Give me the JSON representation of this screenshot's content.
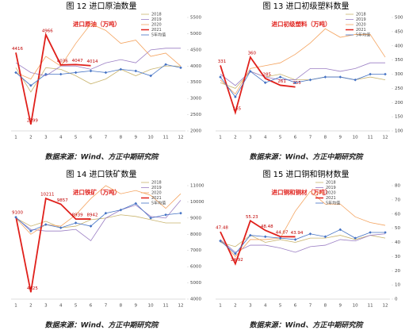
{
  "chart_data": [
    {
      "type": "line",
      "caption": "图 12  进口原油数量",
      "title": "进口原油（万吨）",
      "source": "数据来源：Wind、方正中期研究院",
      "categories": [
        "1",
        "2",
        "3",
        "4",
        "5",
        "6",
        "7",
        "8",
        "9",
        "10",
        "11",
        "12"
      ],
      "ylim": [
        2000,
        5500
      ],
      "yticks": [
        2000,
        2500,
        3000,
        3500,
        4000,
        4500,
        5000,
        5500
      ],
      "grid": false,
      "legend": "upper right",
      "series": [
        {
          "name": "2018",
          "color": "#c9b46e",
          "values": [
            3950,
            3200,
            3950,
            3900,
            3700,
            3450,
            3600,
            3900,
            3700,
            3900,
            4000,
            4000
          ]
        },
        {
          "name": "2019",
          "color": "#9b7fc4",
          "values": [
            4100,
            3800,
            3700,
            4000,
            4000,
            3900,
            4100,
            4200,
            4100,
            4500,
            4550,
            4550
          ]
        },
        {
          "name": "2020",
          "color": "#f4a460",
          "values": [
            3800,
            3600,
            4300,
            4000,
            4700,
            5300,
            5100,
            4700,
            4800,
            4300,
            4400,
            4000
          ]
        },
        {
          "name": "2021",
          "color": "#e0201b",
          "values": [
            4416,
            2199,
            4966,
            4036,
            4047,
            4014,
            null,
            null,
            null,
            null,
            null,
            null
          ],
          "value_labels": [
            "4416",
            "2199",
            "4966",
            "4036",
            "4047",
            "4014",
            null,
            null,
            null,
            null,
            null,
            null
          ]
        },
        {
          "name": "5年均值",
          "color": "#4472c4",
          "values": [
            3800,
            3400,
            3750,
            3750,
            3800,
            3850,
            3800,
            3900,
            3850,
            3700,
            4050,
            3950
          ]
        }
      ]
    },
    {
      "type": "line",
      "caption": "图 13  进口初级塑料数量",
      "title": "进口初级塑料（万吨）",
      "source": "数据来源：Wind、方正中期研究院",
      "categories": [
        "1",
        "2",
        "3",
        "4",
        "5",
        "6",
        "7",
        "8",
        "9",
        "10",
        "11",
        "12"
      ],
      "ylim": [
        100,
        500
      ],
      "yticks": [
        100,
        150,
        200,
        250,
        300,
        350,
        400,
        450,
        500
      ],
      "grid": false,
      "legend": "upper right",
      "series": [
        {
          "name": "2018",
          "color": "#c9b46e",
          "values": [
            270,
            250,
            310,
            290,
            300,
            280,
            280,
            290,
            290,
            280,
            290,
            280
          ]
        },
        {
          "name": "2019",
          "color": "#9b7fc4",
          "values": [
            300,
            260,
            310,
            290,
            280,
            280,
            320,
            320,
            310,
            320,
            340,
            340
          ]
        },
        {
          "name": "2020",
          "color": "#f4a460",
          "values": [
            280,
            230,
            320,
            330,
            340,
            370,
            410,
            460,
            430,
            440,
            440,
            360
          ]
        },
        {
          "name": "2021",
          "color": "#e0201b",
          "values": [
            331,
            165,
            360,
            285,
            261,
            255,
            null,
            null,
            null,
            null,
            null,
            null
          ],
          "value_labels": [
            "331",
            "165",
            "360",
            "285",
            "261",
            "255",
            null,
            null,
            null,
            null,
            null,
            null
          ]
        },
        {
          "name": "5年均值",
          "color": "#4472c4",
          "values": [
            290,
            220,
            310,
            270,
            290,
            270,
            280,
            290,
            290,
            280,
            300,
            300
          ]
        }
      ]
    },
    {
      "type": "line",
      "caption": "图 14  进口铁矿数量",
      "title": "进口铁矿（万吨）",
      "source": "数据来源：Wind、方正中期研究院",
      "categories": [
        "1",
        "2",
        "3",
        "4",
        "5",
        "6",
        "7",
        "8",
        "9",
        "10",
        "11",
        "12"
      ],
      "ylim": [
        4000,
        11000
      ],
      "yticks": [
        4000,
        5000,
        6000,
        7000,
        8000,
        9000,
        10000,
        11000
      ],
      "grid": false,
      "legend": "upper right",
      "series": [
        {
          "name": "2018",
          "color": "#c9b46e",
          "values": [
            9000,
            8500,
            8800,
            8400,
            8500,
            8900,
            9000,
            9200,
            9100,
            8900,
            8700,
            8700
          ]
        },
        {
          "name": "2019",
          "color": "#9b7fc4",
          "values": [
            9000,
            8300,
            8200,
            8200,
            8300,
            7600,
            9000,
            9500,
            9800,
            9100,
            9000,
            10100
          ]
        },
        {
          "name": "2020",
          "color": "#f4a460",
          "values": [
            9000,
            8000,
            8600,
            8500,
            9200,
            10200,
            11000,
            10500,
            10700,
            10400,
            9600,
            10500
          ]
        },
        {
          "name": "2021",
          "color": "#e0201b",
          "values": [
            9100,
            4425,
            10211,
            9857,
            8939,
            8942,
            null,
            null,
            null,
            null,
            null,
            null
          ],
          "value_labels": [
            "9100",
            "4425",
            "10211",
            "9857",
            "8939",
            "8942",
            null,
            null,
            null,
            null,
            null,
            null
          ]
        },
        {
          "name": "5年均值",
          "color": "#4472c4",
          "values": [
            9050,
            8200,
            8600,
            8400,
            8700,
            8500,
            9300,
            9500,
            9900,
            9000,
            9200,
            9300
          ]
        }
      ]
    },
    {
      "type": "line",
      "caption": "图 15  进口铜和铜材数量",
      "title": "进口铜和铜材（万吨）",
      "source": "数据来源：Wind、方正中期研究院",
      "categories": [
        "1",
        "2",
        "3",
        "4",
        "5",
        "6",
        "7",
        "8",
        "9",
        "10",
        "11",
        "12"
      ],
      "ylim": [
        0,
        80
      ],
      "yticks": [
        0,
        10,
        20,
        30,
        40,
        50,
        60,
        70,
        80
      ],
      "grid": false,
      "legend": "upper left",
      "series": [
        {
          "name": "2018",
          "color": "#c9b46e",
          "values": [
            40,
            37,
            45,
            40,
            42,
            40,
            43,
            43,
            45,
            42,
            45,
            43
          ]
        },
        {
          "name": "2019",
          "color": "#9b7fc4",
          "values": [
            42,
            33,
            38,
            38,
            36,
            33,
            37,
            38,
            42,
            41,
            45,
            46
          ]
        },
        {
          "name": "2020",
          "color": "#f4a460",
          "values": [
            42,
            30,
            42,
            42,
            43,
            62,
            76,
            67,
            67,
            58,
            54,
            52
          ]
        },
        {
          "name": "2021",
          "color": "#e0201b",
          "values": [
            47.48,
            24.92,
            55.23,
            48.48,
            44.07,
            43.94,
            null,
            null,
            null,
            null,
            null,
            null
          ],
          "value_labels": [
            "47.48",
            "24.92",
            "55.23",
            "48.48",
            "44.07",
            "43.94",
            null,
            null,
            null,
            null,
            null,
            null
          ]
        },
        {
          "name": "5年均值",
          "color": "#4472c4",
          "values": [
            41,
            32,
            45,
            44,
            43,
            42,
            46,
            44,
            49,
            43,
            47,
            47
          ]
        }
      ]
    }
  ]
}
